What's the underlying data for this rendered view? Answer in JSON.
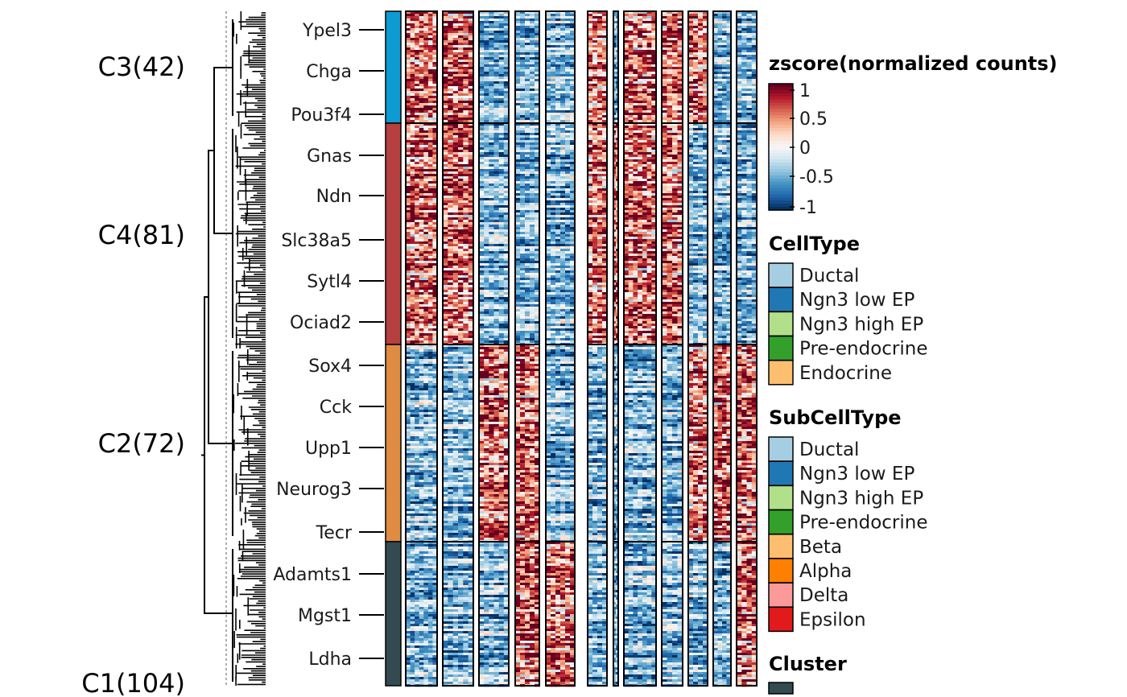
{
  "chart_data": {
    "type": "heatmap",
    "colorbar": {
      "title": "zscore(normalized counts)",
      "ticks": [
        "1",
        "0.5",
        "0",
        "-0.5",
        "-1"
      ],
      "range": [
        -1,
        1
      ],
      "colors": [
        "#053061",
        "#2166ac",
        "#4393c3",
        "#92c5de",
        "#d1e5f0",
        "#f7f7f7",
        "#fddbc7",
        "#f4a582",
        "#d6604d",
        "#b2182b",
        "#67001f"
      ]
    },
    "clusters": [
      {
        "label": "C3(42)",
        "count": 42,
        "color": "#0e9bd4"
      },
      {
        "label": "C4(81)",
        "count": 81,
        "color": "#b5403f"
      },
      {
        "label": "C2(72)",
        "count": 72,
        "color": "#df8b42"
      },
      {
        "label": "C1(104)",
        "count": 104,
        "color": "#334a50"
      }
    ],
    "gene_labels": [
      {
        "name": "Ypel3",
        "cluster": "C3(42)"
      },
      {
        "name": "Chga",
        "cluster": "C3(42)"
      },
      {
        "name": "Pou3f4",
        "cluster": "C3(42)"
      },
      {
        "name": "Gnas",
        "cluster": "C4(81)"
      },
      {
        "name": "Ndn",
        "cluster": "C4(81)"
      },
      {
        "name": "Slc38a5",
        "cluster": "C4(81)"
      },
      {
        "name": "Sytl4",
        "cluster": "C4(81)"
      },
      {
        "name": "Ociad2",
        "cluster": "C4(81)"
      },
      {
        "name": "Sox4",
        "cluster": "C2(72)"
      },
      {
        "name": "Cck",
        "cluster": "C2(72)"
      },
      {
        "name": "Upp1",
        "cluster": "C2(72)"
      },
      {
        "name": "Neurog3",
        "cluster": "C2(72)"
      },
      {
        "name": "Tecr",
        "cluster": "C2(72)"
      },
      {
        "name": "Adamts1",
        "cluster": "C1(104)"
      },
      {
        "name": "Mgst1",
        "cluster": "C1(104)"
      },
      {
        "name": "Ldha",
        "cluster": "C1(104)"
      }
    ],
    "column_blocks": [
      {
        "high_in": [
          "C3(42)",
          "C4(81)"
        ]
      },
      {
        "high_in": [
          "C3(42)",
          "C4(81)"
        ]
      },
      {
        "high_in": [
          "C2(72)"
        ]
      },
      {
        "high_in": [
          "C2(72)",
          "C1(104)"
        ]
      },
      {
        "high_in": [
          "C1(104)"
        ]
      },
      {
        "high_in": [
          "C3(42)",
          "C4(81)"
        ]
      },
      {
        "high_in": [
          "C4(81)"
        ]
      },
      {
        "high_in": [
          "C3(42)",
          "C4(81)"
        ]
      },
      {
        "high_in": [
          "C3(42)",
          "C4(81)"
        ]
      },
      {
        "high_in": [
          "C3(42)",
          "C2(72)"
        ]
      },
      {
        "high_in": [
          "C2(72)"
        ]
      },
      {
        "high_in": [
          "C2(72)",
          "C1(104)"
        ]
      },
      {
        "high_in": [
          "C2(72)",
          "C1(104)"
        ]
      }
    ],
    "legends": [
      {
        "title": "CellType",
        "items": [
          {
            "label": "Ductal",
            "color": "#a6cee3"
          },
          {
            "label": "Ngn3 low EP",
            "color": "#1f78b4"
          },
          {
            "label": "Ngn3 high EP",
            "color": "#b2df8a"
          },
          {
            "label": "Pre-endocrine",
            "color": "#33a02c"
          },
          {
            "label": "Endocrine",
            "color": "#fdbf6f"
          }
        ]
      },
      {
        "title": "SubCellType",
        "items": [
          {
            "label": "Ductal",
            "color": "#a6cee3"
          },
          {
            "label": "Ngn3 low EP",
            "color": "#1f78b4"
          },
          {
            "label": "Ngn3 high EP",
            "color": "#b2df8a"
          },
          {
            "label": "Pre-endocrine",
            "color": "#33a02c"
          },
          {
            "label": "Beta",
            "color": "#fdbf6f"
          },
          {
            "label": "Alpha",
            "color": "#ff7f00"
          },
          {
            "label": "Delta",
            "color": "#fb9a99"
          },
          {
            "label": "Epsilon",
            "color": "#e31a1c"
          }
        ]
      },
      {
        "title": "Cluster",
        "items": []
      }
    ]
  }
}
